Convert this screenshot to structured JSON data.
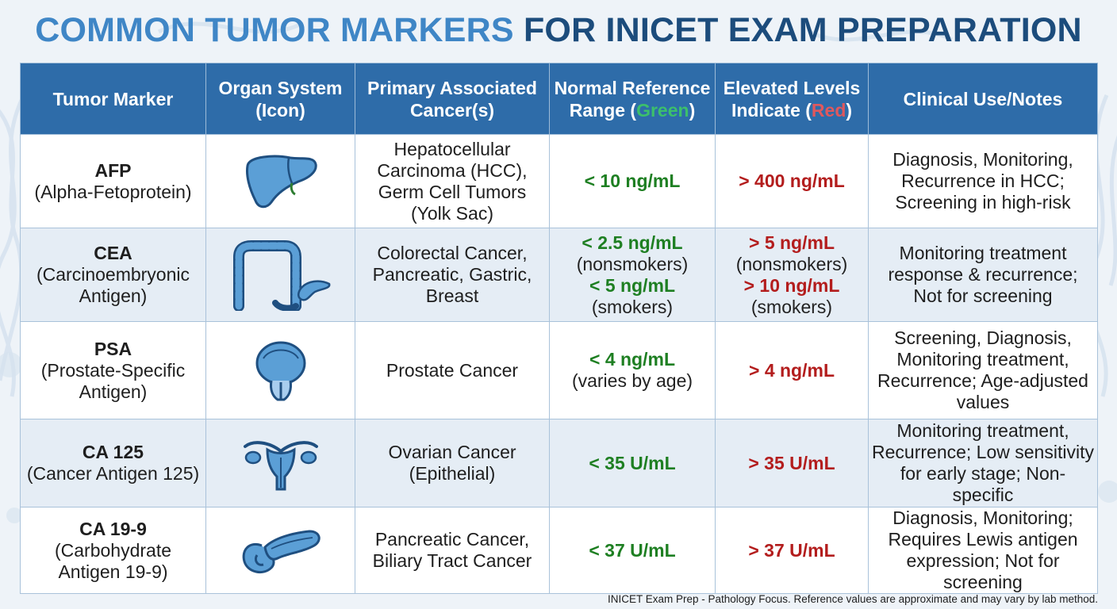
{
  "title": {
    "part1": "COMMON TUMOR MARKERS",
    "part2": "FOR INICET EXAM PREPARATION"
  },
  "headers": {
    "marker": "Tumor Marker",
    "organ_line1": "Organ System",
    "organ_line2": "(Icon)",
    "cancer_line1": "Primary Associated",
    "cancer_line2": "Cancer(s)",
    "normal_line1": "Normal Reference",
    "normal_prefix": "Range (",
    "normal_color_word": "Green",
    "normal_suffix": ")",
    "elevated_line1": "Elevated Levels",
    "elevated_prefix": "Indicate (",
    "elevated_color_word": "Red",
    "elevated_suffix": ")",
    "notes": "Clinical Use/Notes"
  },
  "rows": [
    {
      "abbr": "AFP",
      "full": [
        "(Alpha-Fetoprotein)"
      ],
      "organ_icon": "liver-icon",
      "cancers": [
        "Hepatocellular",
        "Carcinoma (HCC),",
        "Germ Cell Tumors",
        "(Yolk Sac)"
      ],
      "normal": [
        {
          "value": "< 10 ng/mL"
        }
      ],
      "elevated": [
        {
          "value": "> 400 ng/mL"
        }
      ],
      "notes": [
        "Diagnosis, Monitoring,",
        "Recurrence in HCC;",
        "Screening in high-risk"
      ]
    },
    {
      "abbr": "CEA",
      "full": [
        "(Carcinoembryonic",
        "Antigen)"
      ],
      "organ_icon": "colon-pancreas-icon",
      "cancers": [
        "Colorectal Cancer,",
        "Pancreatic, Gastric,",
        "Breast"
      ],
      "normal": [
        {
          "value": "< 2.5 ng/mL",
          "note": "(nonsmokers)"
        },
        {
          "value": "< 5 ng/mL",
          "note": "(smokers)"
        }
      ],
      "elevated": [
        {
          "value": "> 5 ng/mL",
          "note": "(nonsmokers)"
        },
        {
          "value": "> 10 ng/mL",
          "note": "(smokers)"
        }
      ],
      "notes": [
        "Monitoring treatment",
        "response & recurrence;",
        "Not for screening"
      ]
    },
    {
      "abbr": "PSA",
      "full": [
        "(Prostate-Specific",
        "Antigen)"
      ],
      "organ_icon": "prostate-icon",
      "cancers": [
        "Prostate Cancer"
      ],
      "normal": [
        {
          "value": "< 4 ng/mL",
          "note": "(varies by age)"
        }
      ],
      "elevated": [
        {
          "value": "> 4 ng/mL"
        }
      ],
      "notes": [
        "Screening, Diagnosis,",
        "Monitoring treatment,",
        "Recurrence; Age-adjusted",
        "values"
      ]
    },
    {
      "abbr": "CA 125",
      "full": [
        "(Cancer Antigen 125)"
      ],
      "organ_icon": "uterus-ovaries-icon",
      "cancers": [
        "Ovarian Cancer",
        "(Epithelial)"
      ],
      "normal": [
        {
          "value": "< 35 U/mL"
        }
      ],
      "elevated": [
        {
          "value": "> 35 U/mL"
        }
      ],
      "notes": [
        "Monitoring treatment,",
        "Recurrence; Low sensitivity",
        "for early stage; Non-specific"
      ]
    },
    {
      "abbr": "CA 19-9",
      "full": [
        "(Carbohydrate",
        "Antigen 19-9)"
      ],
      "organ_icon": "pancreas-icon",
      "cancers": [
        "Pancreatic Cancer,",
        "Biliary Tract Cancer"
      ],
      "normal": [
        {
          "value": "< 37 U/mL"
        }
      ],
      "elevated": [
        {
          "value": "> 37 U/mL"
        }
      ],
      "notes": [
        "Diagnosis, Monitoring;",
        "Requires Lewis antigen",
        "expression; Not for screening"
      ]
    }
  ],
  "footer": "INICET Exam Prep - Pathology Focus. Reference values are approximate and may vary by lab method.",
  "colors": {
    "title_light": "#3f86c6",
    "title_dark": "#1c4c7c",
    "header_bg": "#2e6ca9",
    "normal_value": "#1e7f22",
    "elevated_value": "#b31d1d",
    "icon_fill": "#5b9fd6",
    "icon_stroke": "#1f4f80"
  }
}
